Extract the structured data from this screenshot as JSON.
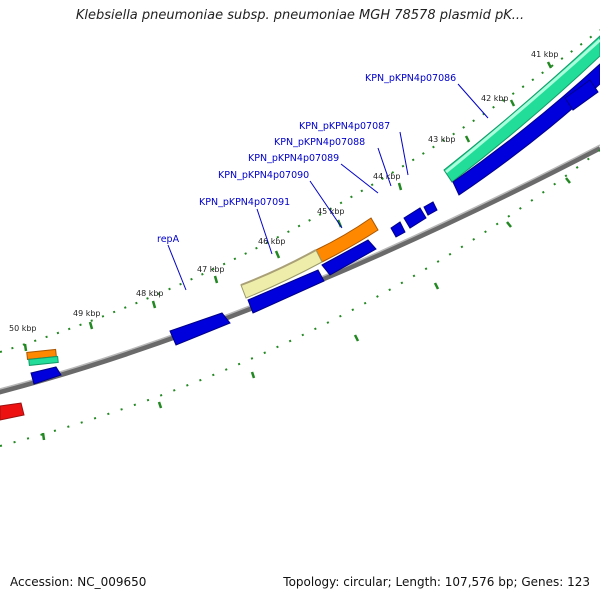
{
  "title": "Klebsiella pneumoniae subsp. pneumoniae MGH 78578 plasmid pK...",
  "footer": {
    "accession": "Accession: NC_009650",
    "summary": "Topology: circular; Length: 107,576 bp; Genes: 123"
  },
  "ticks": [
    {
      "label": "41 kbp"
    },
    {
      "label": "42 kbp"
    },
    {
      "label": "43 kbp"
    },
    {
      "label": "44 kbp"
    },
    {
      "label": "45 kbp"
    },
    {
      "label": "46 kbp"
    },
    {
      "label": "47 kbp"
    },
    {
      "label": "48 kbp"
    },
    {
      "label": "49 kbp"
    },
    {
      "label": "50 kbp"
    }
  ],
  "gene_labels": [
    {
      "label": "KPN_pKPN4p07086"
    },
    {
      "label": "KPN_pKPN4p07087"
    },
    {
      "label": "KPN_pKPN4p07088"
    },
    {
      "label": "KPN_pKPN4p07089"
    },
    {
      "label": "KPN_pKPN4p07090"
    },
    {
      "label": "KPN_pKPN4p07091"
    },
    {
      "label": "repA"
    }
  ],
  "colors": {
    "cds": "#0000dd",
    "gene_green": "#22dd99",
    "orange": "#ff8800",
    "khaki": "#eeeeaa",
    "red": "#ee1111",
    "backbone": "#888888",
    "tick": "#228822",
    "label": "#0000cc"
  }
}
